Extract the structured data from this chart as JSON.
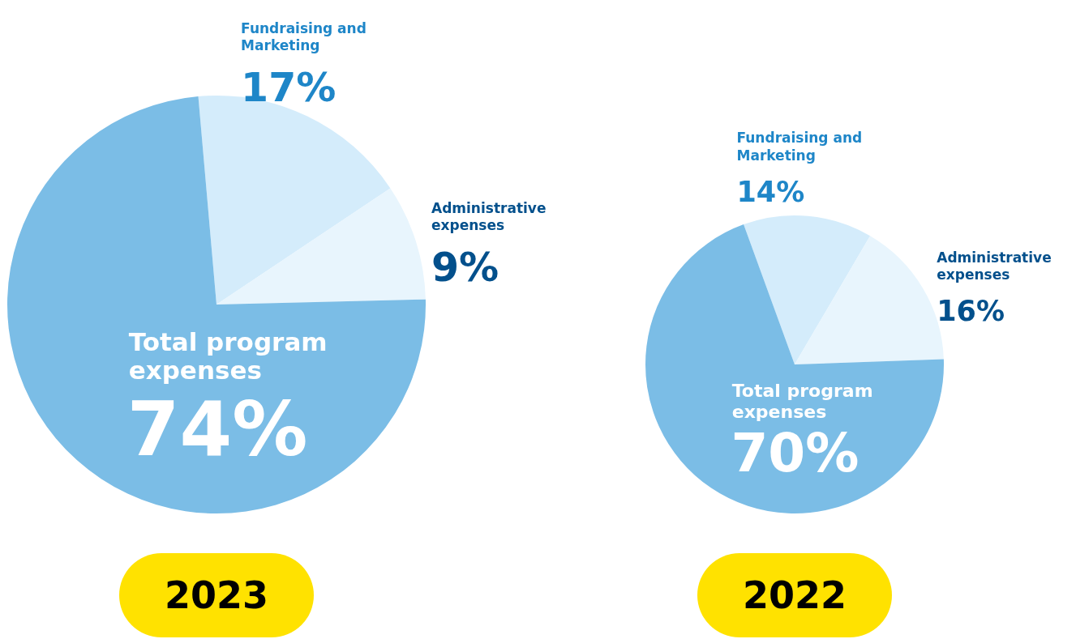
{
  "chart_data": [
    {
      "type": "pie",
      "title": "2023",
      "categories": [
        "Fundraising and Marketing",
        "Administrative expenses",
        "Total program expenses"
      ],
      "values": [
        17,
        9,
        74
      ],
      "colors": [
        "#d4ecfb",
        "#e8f5fd",
        "#7bbde6"
      ],
      "value_labels": [
        "17%",
        "9%",
        "74%"
      ]
    },
    {
      "type": "pie",
      "title": "2022",
      "categories": [
        "Fundraising and Marketing",
        "Administrative expenses",
        "Total program expenses"
      ],
      "values": [
        14,
        16,
        70
      ],
      "colors": [
        "#d4ecfb",
        "#e8f5fd",
        "#7bbde6"
      ],
      "value_labels": [
        "14%",
        "16%",
        "70%"
      ]
    }
  ]
}
